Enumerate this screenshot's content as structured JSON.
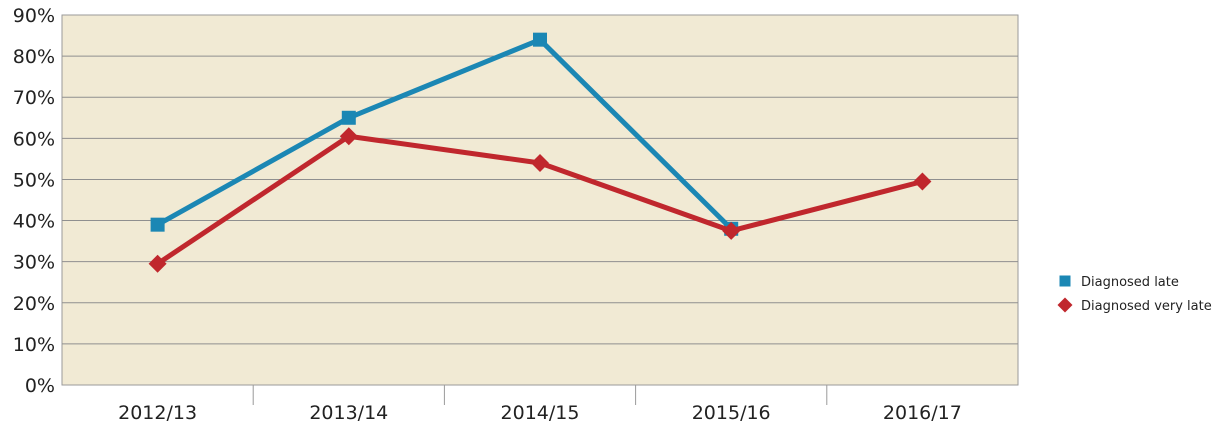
{
  "chart_data": {
    "type": "line",
    "title": "",
    "xlabel": "",
    "ylabel": "",
    "categories": [
      "2012/13",
      "2013/14",
      "2014/15",
      "2015/16",
      "2016/17"
    ],
    "ylim": [
      0,
      90
    ],
    "yticks": [
      0,
      10,
      20,
      30,
      40,
      50,
      60,
      70,
      80,
      90
    ],
    "ytick_labels": [
      "0%",
      "10%",
      "20%",
      "30%",
      "40%",
      "50%",
      "60%",
      "70%",
      "80%",
      "90%"
    ],
    "grid": true,
    "legend_position": "right",
    "plot_background": "#f1ead4",
    "series": [
      {
        "name": "Diagnosed late",
        "color": "#1b87b4",
        "marker": "square",
        "values": [
          39,
          65,
          84,
          38,
          null
        ]
      },
      {
        "name": "Diagnosed very late",
        "color": "#c0272d",
        "marker": "diamond",
        "values": [
          29.5,
          60.5,
          54,
          37.5,
          49.5
        ]
      }
    ]
  }
}
